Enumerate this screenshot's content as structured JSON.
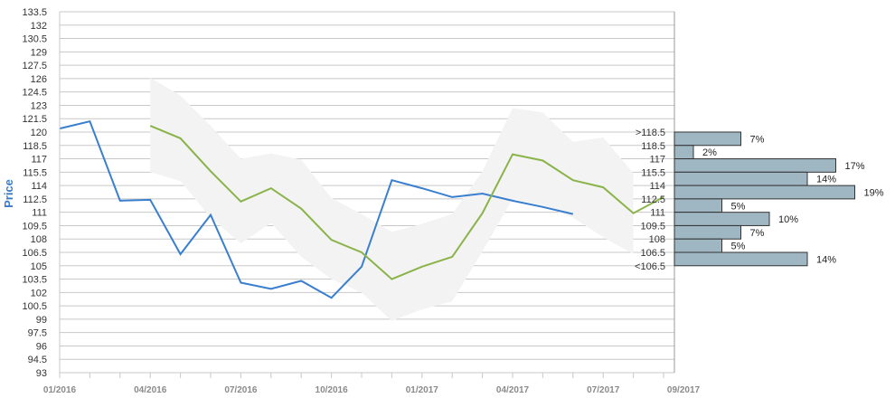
{
  "chart_data": {
    "type": "line",
    "ylabel": "Price",
    "ylim": [
      93,
      134
    ],
    "y_ticks": [
      133.5,
      132,
      130.5,
      129,
      127.5,
      126,
      124.5,
      123,
      121.5,
      120,
      118.5,
      117,
      115.5,
      114,
      112.5,
      111,
      109.5,
      108,
      106.5,
      105,
      103.5,
      102,
      100.5,
      99,
      97.5,
      96,
      94.5,
      93
    ],
    "x_ticks": [
      "01/2016",
      "04/2016",
      "07/2016",
      "10/2016",
      "01/2017",
      "04/2017",
      "07/2017",
      "09/2017"
    ],
    "grid": "horizontal",
    "series": [
      {
        "name": "",
        "color": "#3a7fcf",
        "points": [
          [
            "2016-01",
            120.4
          ],
          [
            "2016-02",
            121.2
          ],
          [
            "2016-03",
            112.3
          ],
          [
            "2016-04",
            112.4
          ],
          [
            "2016-05",
            106.3
          ],
          [
            "2016-06",
            110.7
          ],
          [
            "2016-07",
            103.1
          ],
          [
            "2016-08",
            102.4
          ],
          [
            "2016-09",
            103.3
          ],
          [
            "2016-10",
            101.4
          ],
          [
            "2016-11",
            104.9
          ],
          [
            "2016-12",
            114.6
          ],
          [
            "2017-01",
            113.7
          ],
          [
            "2017-02",
            112.7
          ],
          [
            "2017-03",
            113.1
          ],
          [
            "2017-04",
            112.3
          ],
          [
            "2017-05",
            111.6
          ],
          [
            "2017-06",
            110.8
          ]
        ]
      },
      {
        "name": "",
        "color": "#8ab34a",
        "points": [
          [
            "2016-04",
            120.7
          ],
          [
            "2016-05",
            119.3
          ],
          [
            "2016-06",
            115.6
          ],
          [
            "2016-07",
            112.2
          ],
          [
            "2016-08",
            113.7
          ],
          [
            "2016-09",
            111.4
          ],
          [
            "2016-10",
            107.9
          ],
          [
            "2016-11",
            106.5
          ],
          [
            "2016-12",
            103.5
          ],
          [
            "2017-01",
            104.9
          ],
          [
            "2017-02",
            106.0
          ],
          [
            "2017-03",
            110.9
          ],
          [
            "2017-04",
            117.5
          ],
          [
            "2017-05",
            116.8
          ],
          [
            "2017-06",
            114.6
          ],
          [
            "2017-07",
            113.8
          ],
          [
            "2017-08",
            110.9
          ],
          [
            "2017-09",
            112.7
          ]
        ]
      }
    ],
    "band": {
      "color": "#f3f3f3",
      "upper": [
        [
          "2016-04",
          126.1
        ],
        [
          "2016-05",
          124.1
        ],
        [
          "2016-06",
          120.7
        ],
        [
          "2016-07",
          117.0
        ],
        [
          "2016-08",
          117.6
        ],
        [
          "2016-09",
          116.9
        ],
        [
          "2016-10",
          112.6
        ],
        [
          "2016-11",
          110.8
        ],
        [
          "2016-12",
          108.8
        ],
        [
          "2017-01",
          109.7
        ],
        [
          "2017-02",
          110.8
        ],
        [
          "2017-03",
          115.6
        ],
        [
          "2017-04",
          122.7
        ],
        [
          "2017-05",
          122.2
        ],
        [
          "2017-06",
          118.9
        ],
        [
          "2017-07",
          119.4
        ],
        [
          "2017-08",
          115.4
        ]
      ],
      "lower": [
        [
          "2016-04",
          115.5
        ],
        [
          "2016-05",
          114.5
        ],
        [
          "2016-06",
          110.4
        ],
        [
          "2016-07",
          107.5
        ],
        [
          "2016-08",
          109.8
        ],
        [
          "2016-09",
          106.0
        ],
        [
          "2016-10",
          103.5
        ],
        [
          "2016-11",
          102.0
        ],
        [
          "2016-12",
          98.8
        ],
        [
          "2017-01",
          100.1
        ],
        [
          "2017-02",
          101.0
        ],
        [
          "2017-03",
          106.6
        ],
        [
          "2017-04",
          112.5
        ],
        [
          "2017-05",
          111.7
        ],
        [
          "2017-06",
          110.4
        ],
        [
          "2017-07",
          108.2
        ],
        [
          "2017-08",
          106.3
        ]
      ]
    },
    "distribution": {
      "color": "#9fb6c3",
      "bins": [
        {
          "label": ">118.5",
          "pct": 7,
          "pct_label": "7%"
        },
        {
          "label": "118.5",
          "pct": 2,
          "pct_label": "2%"
        },
        {
          "label": "117",
          "pct": 17,
          "pct_label": "17%"
        },
        {
          "label": "115.5",
          "pct": 14,
          "pct_label": "14%"
        },
        {
          "label": "114",
          "pct": 19,
          "pct_label": "19%"
        },
        {
          "label": "112.5",
          "pct": 5,
          "pct_label": "5%"
        },
        {
          "label": "111",
          "pct": 10,
          "pct_label": "10%"
        },
        {
          "label": "109.5",
          "pct": 7,
          "pct_label": "7%"
        },
        {
          "label": "108",
          "pct": 5,
          "pct_label": "5%"
        },
        {
          "label": "106.5",
          "pct": 14,
          "pct_label": "14%"
        },
        {
          "label": "<106.5",
          "pct": null,
          "pct_label": ""
        }
      ]
    }
  }
}
